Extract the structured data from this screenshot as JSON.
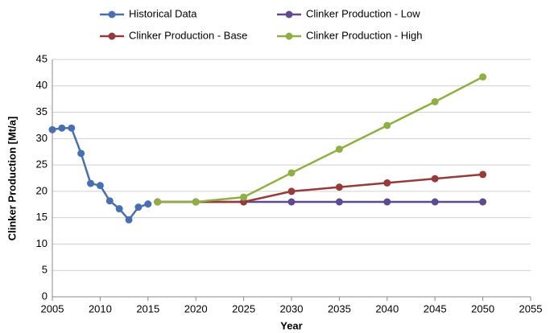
{
  "chart_data": {
    "type": "line",
    "xlabel": "Year",
    "ylabel": "Clinker Production [Mt/a]",
    "xlim": [
      2005,
      2055
    ],
    "xticks": [
      2005,
      2010,
      2015,
      2020,
      2025,
      2030,
      2035,
      2040,
      2045,
      2050,
      2055
    ],
    "ylim": [
      0,
      45
    ],
    "yticks": [
      0,
      5,
      10,
      15,
      20,
      25,
      30,
      35,
      40,
      45
    ],
    "grid": true,
    "legend": "top",
    "series": [
      {
        "name": "Historical Data",
        "color": "#4a6fb0",
        "x": [
          2005,
          2006,
          2007,
          2008,
          2009,
          2010,
          2011,
          2012,
          2013,
          2014,
          2015
        ],
        "values": [
          31.7,
          32,
          32,
          27.2,
          21.5,
          21.1,
          18.2,
          16.7,
          14.6,
          17.0,
          17.6
        ]
      },
      {
        "name": "Clinker Production - Low",
        "color": "#5f4a8b",
        "x": [
          2016,
          2020,
          2025,
          2030,
          2035,
          2040,
          2045,
          2050
        ],
        "values": [
          18,
          18,
          18,
          18,
          18,
          18,
          18,
          18
        ]
      },
      {
        "name": "Clinker Production - Base",
        "color": "#943c3a",
        "x": [
          2016,
          2020,
          2025,
          2030,
          2035,
          2040,
          2045,
          2050
        ],
        "values": [
          18,
          18,
          18,
          20,
          20.8,
          21.6,
          22.4,
          23.2
        ]
      },
      {
        "name": "Clinker Production - High",
        "color": "#8faf45",
        "x": [
          2016,
          2020,
          2025,
          2030,
          2035,
          2040,
          2045,
          2050
        ],
        "values": [
          18,
          18,
          18.9,
          23.5,
          28,
          32.5,
          37,
          41.7
        ]
      }
    ]
  }
}
